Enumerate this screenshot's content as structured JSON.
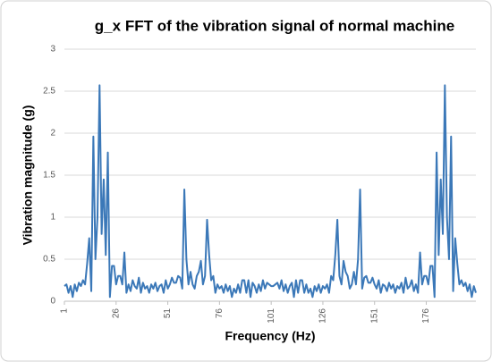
{
  "chart_data": {
    "type": "line",
    "title": "g_x FFT of the vibration signal of normal machine",
    "x_label": "Frequency (Hz)",
    "y_label": "Vibration magnitude (g)",
    "x": [
      1,
      2,
      3,
      4,
      5,
      6,
      7,
      8,
      9,
      10,
      11,
      12,
      13,
      14,
      15,
      16,
      17,
      18,
      19,
      20,
      21,
      22,
      23,
      24,
      25,
      26,
      27,
      28,
      29,
      30,
      31,
      32,
      33,
      34,
      35,
      36,
      37,
      38,
      39,
      40,
      41,
      42,
      43,
      44,
      45,
      46,
      47,
      48,
      49,
      50,
      51,
      52,
      53,
      54,
      55,
      56,
      57,
      58,
      59,
      60,
      61,
      62,
      63,
      64,
      65,
      66,
      67,
      68,
      69,
      70,
      71,
      72,
      73,
      74,
      75,
      76,
      77,
      78,
      79,
      80,
      81,
      82,
      83,
      84,
      85,
      86,
      87,
      88,
      89,
      90,
      91,
      92,
      93,
      94,
      95,
      96,
      97,
      98,
      99,
      100,
      101,
      102,
      103,
      104,
      105,
      106,
      107,
      108,
      109,
      110,
      111,
      112,
      113,
      114,
      115,
      116,
      117,
      118,
      119,
      120,
      121,
      122,
      123,
      124,
      125,
      126,
      127,
      128,
      129,
      130,
      131,
      132,
      133,
      134,
      135,
      136,
      137,
      138,
      139,
      140,
      141,
      142,
      143,
      144,
      145,
      146,
      147,
      148,
      149,
      150,
      151,
      152,
      153,
      154,
      155,
      156,
      157,
      158,
      159,
      160,
      161,
      162,
      163,
      164,
      165,
      166,
      167,
      168,
      169,
      170,
      171,
      172,
      173,
      174,
      175,
      176,
      177,
      178,
      179,
      180,
      181,
      182,
      183,
      184,
      185,
      186,
      187,
      188,
      189,
      190,
      191,
      192,
      193,
      194,
      195,
      196,
      197,
      198,
      199,
      200
    ],
    "series": [
      {
        "color": "#3b78b8",
        "values": [
          0.18,
          0.2,
          0.1,
          0.18,
          0.05,
          0.2,
          0.12,
          0.22,
          0.18,
          0.25,
          0.2,
          0.45,
          0.75,
          0.12,
          1.96,
          0.5,
          1.0,
          2.57,
          0.8,
          1.45,
          0.55,
          1.77,
          0.05,
          0.42,
          0.42,
          0.2,
          0.3,
          0.3,
          0.2,
          0.58,
          0.1,
          0.2,
          0.12,
          0.25,
          0.18,
          0.15,
          0.28,
          0.1,
          0.22,
          0.15,
          0.18,
          0.1,
          0.2,
          0.15,
          0.22,
          0.12,
          0.18,
          0.2,
          0.1,
          0.25,
          0.15,
          0.2,
          0.28,
          0.22,
          0.22,
          0.3,
          0.28,
          0.15,
          1.33,
          0.5,
          0.2,
          0.35,
          0.2,
          0.15,
          0.3,
          0.35,
          0.48,
          0.2,
          0.3,
          0.97,
          0.55,
          0.25,
          0.3,
          0.1,
          0.2,
          0.15,
          0.18,
          0.1,
          0.2,
          0.12,
          0.18,
          0.05,
          0.15,
          0.1,
          0.2,
          0.1,
          0.25,
          0.25,
          0.1,
          0.25,
          0.05,
          0.22,
          0.18,
          0.1,
          0.2,
          0.12,
          0.25,
          0.15,
          0.22,
          0.2,
          0.18,
          0.18,
          0.2,
          0.22,
          0.15,
          0.25,
          0.12,
          0.2,
          0.1,
          0.18,
          0.22,
          0.05,
          0.25,
          0.1,
          0.25,
          0.25,
          0.1,
          0.2,
          0.1,
          0.15,
          0.05,
          0.18,
          0.12,
          0.2,
          0.1,
          0.18,
          0.15,
          0.2,
          0.1,
          0.3,
          0.25,
          0.55,
          0.97,
          0.3,
          0.2,
          0.48,
          0.35,
          0.3,
          0.15,
          0.2,
          0.35,
          0.2,
          0.5,
          1.33,
          0.15,
          0.28,
          0.3,
          0.22,
          0.22,
          0.28,
          0.2,
          0.15,
          0.25,
          0.1,
          0.2,
          0.18,
          0.12,
          0.22,
          0.15,
          0.2,
          0.1,
          0.18,
          0.15,
          0.22,
          0.1,
          0.28,
          0.15,
          0.18,
          0.25,
          0.12,
          0.2,
          0.1,
          0.58,
          0.2,
          0.3,
          0.3,
          0.2,
          0.42,
          0.42,
          0.05,
          1.77,
          0.55,
          1.45,
          0.8,
          2.57,
          1.0,
          0.5,
          1.96,
          0.12,
          0.75,
          0.45,
          0.2,
          0.25,
          0.18,
          0.22,
          0.12,
          0.2,
          0.05,
          0.18,
          0.1
        ]
      }
    ],
    "xlim": [
      1,
      200
    ],
    "xticks": [
      1,
      26,
      51,
      76,
      101,
      126,
      151,
      176
    ],
    "ylim": [
      0,
      3
    ],
    "yticks": [
      0,
      0.5,
      1,
      1.5,
      2,
      2.5,
      3
    ],
    "grid": true
  }
}
